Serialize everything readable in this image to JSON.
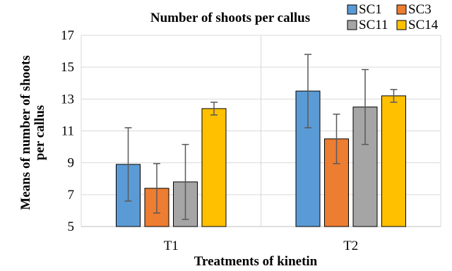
{
  "chart_data": {
    "type": "bar",
    "title": "Number of shoots per callus",
    "xlabel": "Treatments of kinetin",
    "ylabel_lines": [
      "Means of number of shoots",
      "per callus"
    ],
    "categories": [
      "T1",
      "T2"
    ],
    "ylim": [
      5,
      17
    ],
    "yticks": [
      5,
      7,
      9,
      11,
      13,
      15,
      17
    ],
    "grid": "horizontal",
    "legend_position": "top-right",
    "series": [
      {
        "name": "SC1",
        "color": "#5b9bd5",
        "values": [
          8.9,
          13.5
        ],
        "errors": [
          2.3,
          2.3
        ]
      },
      {
        "name": "SC3",
        "color": "#ed7d31",
        "values": [
          7.4,
          10.5
        ],
        "errors": [
          1.55,
          1.55
        ]
      },
      {
        "name": "SC11",
        "color": "#a5a5a5",
        "values": [
          7.8,
          12.5
        ],
        "errors": [
          2.35,
          2.35
        ]
      },
      {
        "name": "SC14",
        "color": "#ffc000",
        "values": [
          12.4,
          13.2
        ],
        "errors": [
          0.4,
          0.4
        ]
      }
    ]
  }
}
